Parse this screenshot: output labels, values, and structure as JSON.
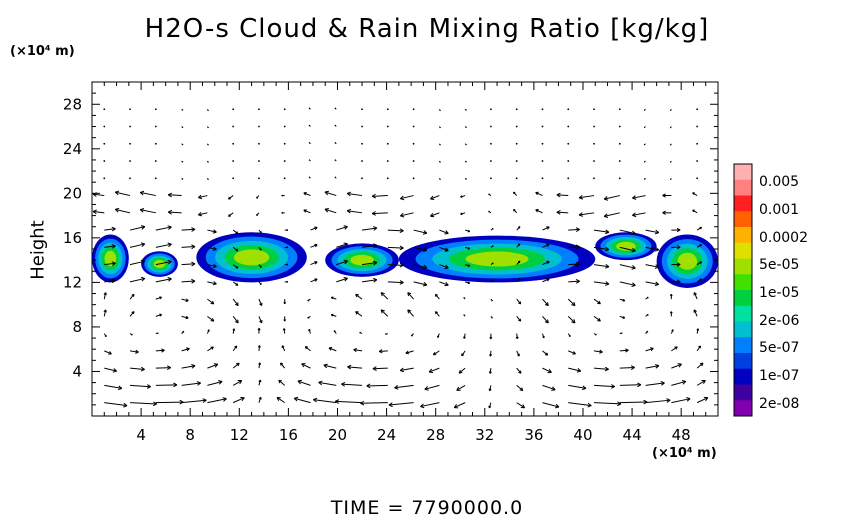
{
  "chart_data": {
    "type": "heatmap",
    "title": "H2O-s Cloud & Rain Mixing Ratio [kg/kg]",
    "ylabel": "Height",
    "y_unit": "(×10⁴ m)",
    "x_unit": "(×10⁴ m)",
    "x_ticks": [
      4,
      8,
      12,
      16,
      20,
      24,
      28,
      32,
      36,
      40,
      44,
      48
    ],
    "y_ticks": [
      4,
      8,
      12,
      16,
      20,
      24,
      28
    ],
    "xlim": [
      0,
      51
    ],
    "ylim": [
      0,
      30
    ],
    "colorbar_labels": [
      "0.005",
      "0.001",
      "0.0002",
      "5e-05",
      "1e-05",
      "2e-06",
      "5e-07",
      "1e-07",
      "2e-08"
    ],
    "colorbar_colors": [
      "#ffb0b0",
      "#ff8080",
      "#ff2020",
      "#ff6000",
      "#ffb000",
      "#e0e000",
      "#a0e000",
      "#40e000",
      "#00d040",
      "#00e0a0",
      "#00c0d0",
      "#0080ff",
      "#0040e0",
      "#0000c0",
      "#4000a0",
      "#8000b0"
    ],
    "cloud_blobs": [
      {
        "x": [
          0,
          3
        ],
        "y": [
          12,
          16.3
        ]
      },
      {
        "x": [
          4,
          7
        ],
        "y": [
          12.5,
          14.8
        ]
      },
      {
        "x": [
          8.5,
          17.5
        ],
        "y": [
          12,
          16.5
        ]
      },
      {
        "x": [
          19,
          25
        ],
        "y": [
          12.5,
          15.5
        ]
      },
      {
        "x": [
          25,
          41
        ],
        "y": [
          12,
          16.2
        ]
      },
      {
        "x": [
          41,
          46
        ],
        "y": [
          14,
          16.5
        ]
      },
      {
        "x": [
          46,
          51
        ],
        "y": [
          11.5,
          16.3
        ]
      }
    ],
    "wind_vectors": "approximate field; strongest return flow near surface x 18-36, eastward/westward shear near 14-20"
  },
  "footer": {
    "time_label": "TIME  =  7790000.0"
  }
}
